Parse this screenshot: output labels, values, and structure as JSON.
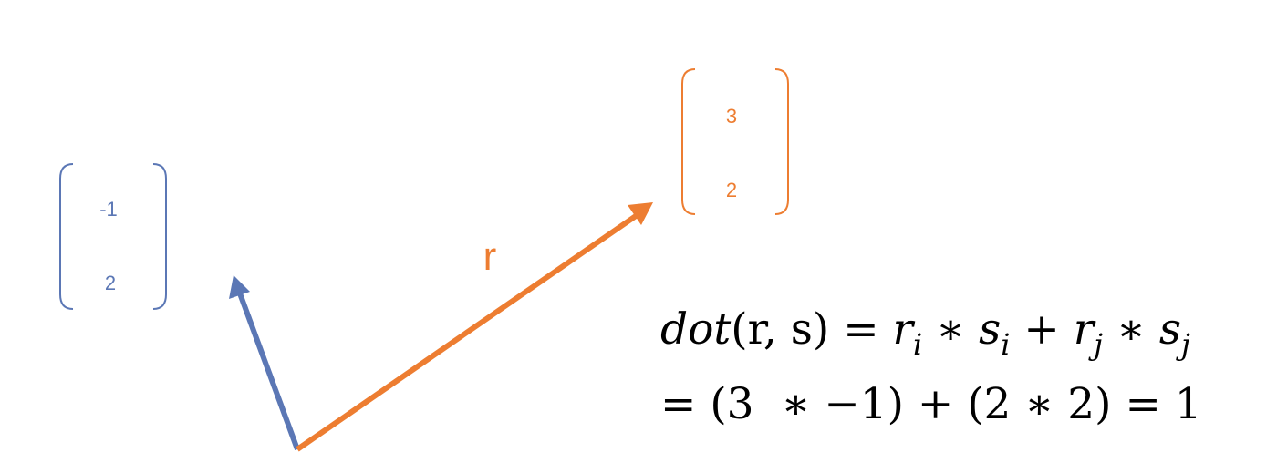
{
  "colors": {
    "s_vector": "#5b77b5",
    "r_vector": "#ed7d31",
    "text": "#000000"
  },
  "vector_s": {
    "components": [
      "-1",
      "2"
    ]
  },
  "vector_r": {
    "label": "r",
    "components": [
      "3",
      "2"
    ]
  },
  "formula": {
    "line1": {
      "lhs_fn": "dot",
      "lhs_args": "(r, s) = ",
      "term1_a": "r",
      "term1_a_sub": "i",
      "times1": " ∗ ",
      "term1_b": "s",
      "term1_b_sub": "i",
      "plus": " + ",
      "term2_a": "r",
      "term2_a_sub": "j",
      "times2": " ∗ ",
      "term2_b": "s",
      "term2_b_sub": "j"
    },
    "line2": "= (3  ∗ −1) + (2 ∗ 2) = 1"
  }
}
